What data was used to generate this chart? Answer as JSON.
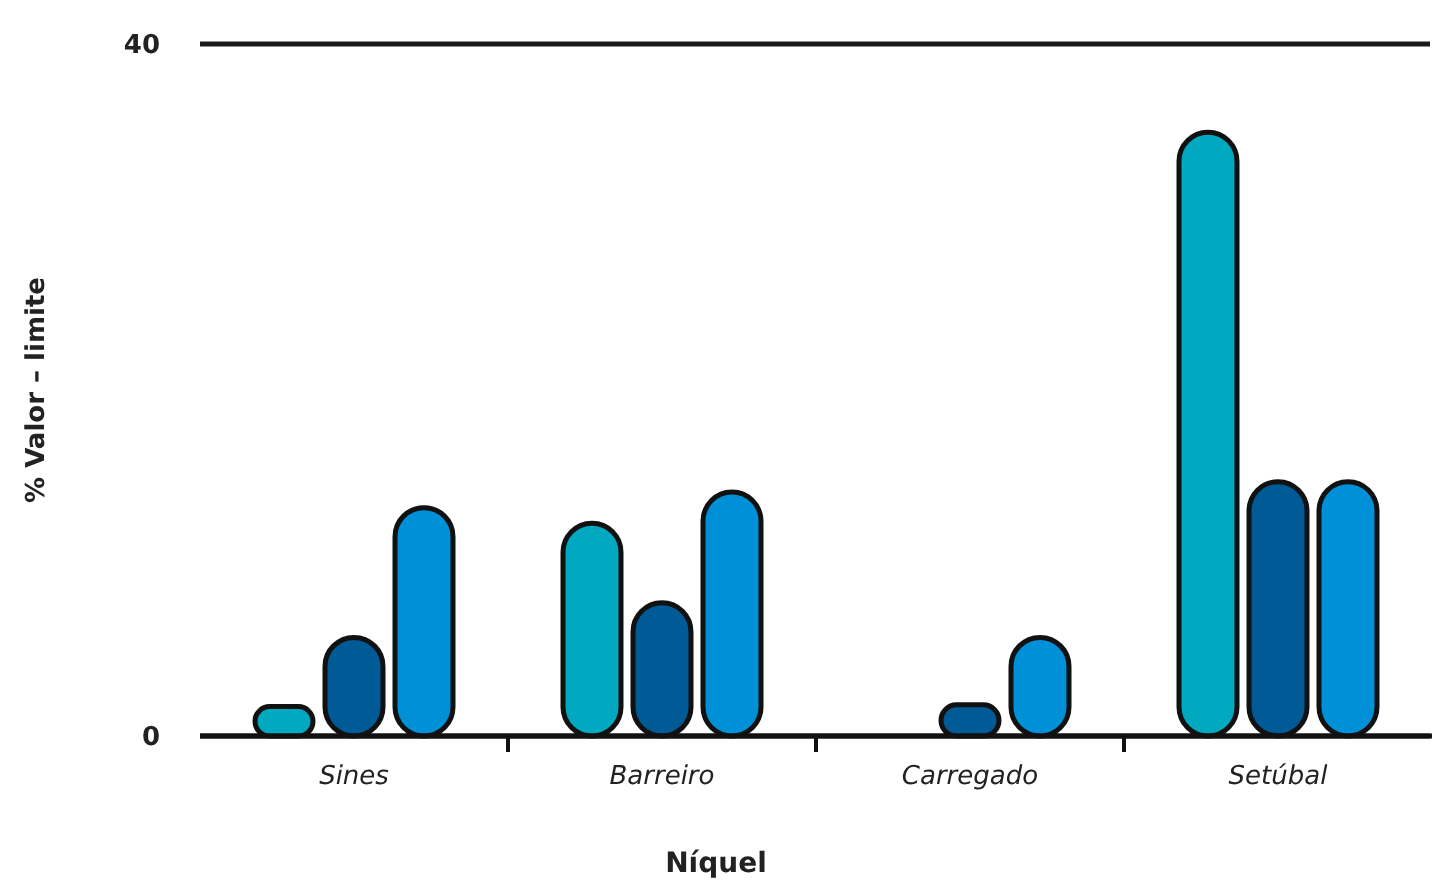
{
  "chart_data": {
    "type": "bar",
    "xlabel": "Níquel",
    "ylabel": "% Valor – limite",
    "categories": [
      "Sines",
      "Barreiro",
      "Carregado",
      "Setúbal"
    ],
    "series": [
      {
        "color": "#00a8c0",
        "values": [
          1.7,
          12.3,
          null,
          34.9
        ]
      },
      {
        "color": "#005a96",
        "values": [
          5.7,
          7.7,
          1.8,
          14.7
        ]
      },
      {
        "color": "#0090d8",
        "values": [
          13.2,
          14.1,
          5.7,
          14.7
        ]
      }
    ],
    "ylim": [
      0,
      40
    ],
    "yticks": [
      0,
      40
    ],
    "grid": "y"
  }
}
